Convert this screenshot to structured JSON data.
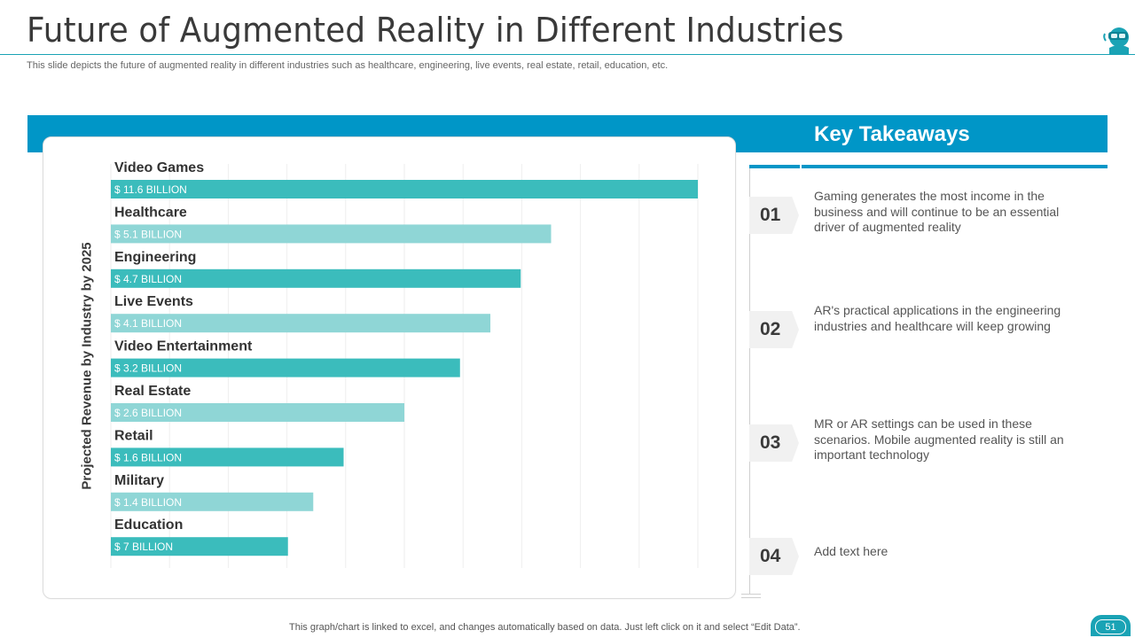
{
  "slide": {
    "title": "Future of Augmented Reality in Different Industries",
    "subtitle": "This slide depicts the future of augmented reality in different industries such as healthcare, engineering, live events, real estate, retail, education, etc.",
    "footer": "This graph/chart is linked to excel,  and changes automatically based on data. Just left click on it and select “Edit Data”.",
    "page_number": "51",
    "logo_icon": "vr-headset-person-icon"
  },
  "chart_data": {
    "type": "bar",
    "orientation": "horizontal",
    "ylabel": "Projected Revenue by Industry by 2025",
    "categories": [
      "Video Games",
      "Healthcare",
      "Engineering",
      "Live Events",
      "Video Entertainment",
      "Real Estate",
      "Retail",
      "Military",
      "Education"
    ],
    "values": [
      11.6,
      5.1,
      4.7,
      4.1,
      3.2,
      2.6,
      1.6,
      1.4,
      7
    ],
    "bar_lengths_estimated": [
      11.6,
      8.7,
      8.1,
      7.5,
      6.9,
      5.8,
      4.6,
      4.0,
      3.5
    ],
    "data_labels": [
      "$ 11.6 BILLION",
      "$ 5.1 BILLION",
      "$ 4.7 BILLION",
      "$ 4.1 BILLION",
      "$ 3.2 BILLION",
      "$ 2.6 BILLION",
      "$ 1.6 BILLION",
      "$ 1.4 BILLION",
      "$ 7 BILLION"
    ],
    "xlim": [
      0,
      11.6
    ],
    "grid": true,
    "colors": {
      "dark": "#3bbcbc",
      "light": "#8fd6d6"
    }
  },
  "takeaways": {
    "title": "Key Takeaways",
    "items": [
      {
        "num": "01",
        "text": "Gaming generates the most income in the business and will continue to be an essential driver of augmented reality"
      },
      {
        "num": "02",
        "text": "AR's practical applications in the engineering industries and healthcare will keep growing"
      },
      {
        "num": "03",
        "text": "MR or AR settings can be used in these scenarios. Mobile augmented reality is still an important technology"
      },
      {
        "num": "04",
        "text": "Add text here"
      }
    ]
  },
  "colors": {
    "accent": "#0096c7",
    "teal": "#1aa3b5"
  }
}
